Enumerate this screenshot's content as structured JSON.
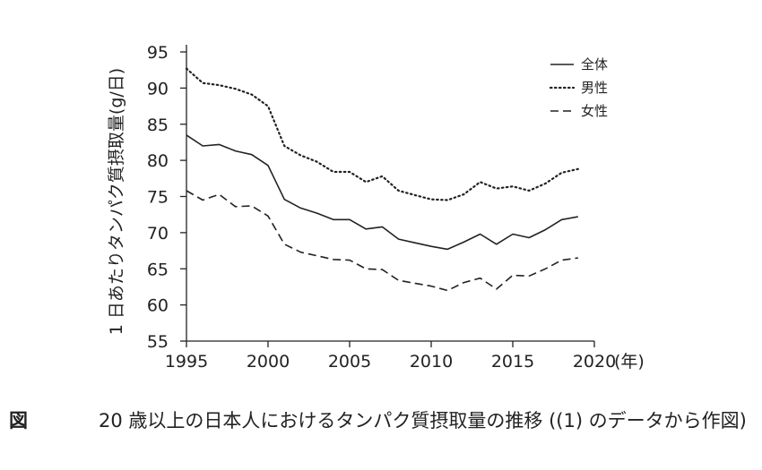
{
  "chart_data": {
    "type": "line",
    "title": "",
    "xlabel": "",
    "x_unit": "(年)",
    "ylabel": "1 日あたりタンパク質摂取量(g/日)",
    "xlim": [
      1995,
      2020
    ],
    "ylim": [
      55,
      95
    ],
    "x_ticks": [
      "1995",
      "2000",
      "2005",
      "2010",
      "2015",
      "2020"
    ],
    "y_ticks": [
      "55",
      "60",
      "65",
      "70",
      "75",
      "80",
      "85",
      "90",
      "95"
    ],
    "grid": false,
    "legend_position": "top-right",
    "x": [
      1995,
      1996,
      1997,
      1998,
      1999,
      2000,
      2001,
      2002,
      2003,
      2004,
      2005,
      2006,
      2007,
      2008,
      2009,
      2010,
      2011,
      2012,
      2013,
      2014,
      2015,
      2016,
      2017,
      2018,
      2019
    ],
    "series": [
      {
        "name": "全体",
        "style": "solid",
        "values": [
          83.5,
          82.0,
          82.2,
          81.3,
          80.8,
          79.3,
          74.6,
          73.4,
          72.7,
          71.8,
          71.8,
          70.5,
          70.8,
          69.1,
          68.6,
          68.1,
          67.7,
          68.7,
          69.8,
          68.4,
          69.8,
          69.3,
          70.4,
          71.8,
          72.2
        ]
      },
      {
        "name": "男性",
        "style": "dotted",
        "values": [
          92.7,
          90.7,
          90.4,
          89.9,
          89.1,
          87.5,
          82.0,
          80.7,
          79.8,
          78.4,
          78.4,
          77.0,
          77.8,
          75.8,
          75.2,
          74.6,
          74.5,
          75.3,
          77.0,
          76.1,
          76.4,
          75.8,
          76.8,
          78.3,
          78.8
        ]
      },
      {
        "name": "女性",
        "style": "dashed",
        "values": [
          75.8,
          74.5,
          75.3,
          73.6,
          73.7,
          72.3,
          68.4,
          67.3,
          66.8,
          66.3,
          66.2,
          65.0,
          64.9,
          63.4,
          63.0,
          62.6,
          62.0,
          63.1,
          63.7,
          62.2,
          64.1,
          64.0,
          65.0,
          66.2,
          66.5
        ]
      }
    ]
  },
  "caption": {
    "figure_label": "図",
    "text": "20 歳以上の日本人におけるタンパク質摂取量の推移 ((1) のデータから作図)"
  }
}
